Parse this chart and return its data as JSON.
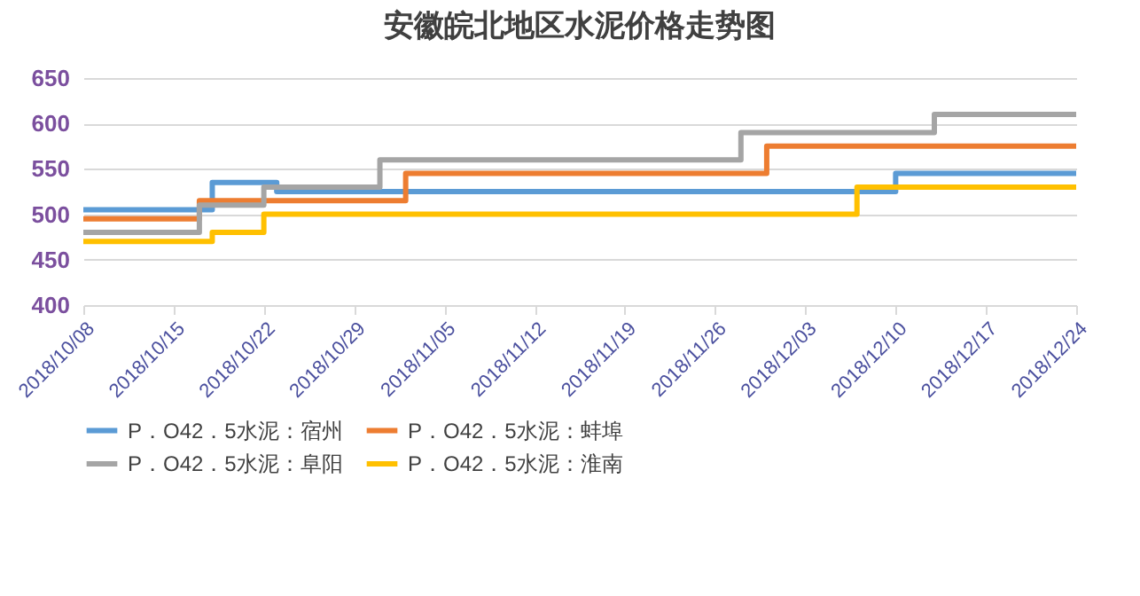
{
  "chart_data": {
    "type": "step",
    "title": "安徽皖北地区水泥价格走势图",
    "series": [
      {
        "name": "P．O42．5水泥：宿州",
        "color": "#5b9bd5",
        "x": [
          "2018-10-08",
          "2018-10-18",
          "2018-10-23",
          "2018-12-10",
          "2018-12-24"
        ],
        "values": [
          505,
          535,
          525,
          545,
          545
        ]
      },
      {
        "name": "P．O42．5水泥：蚌埠",
        "color": "#ed7d31",
        "x": [
          "2018-10-08",
          "2018-10-17",
          "2018-11-02",
          "2018-11-30",
          "2018-12-24"
        ],
        "values": [
          495,
          515,
          545,
          575,
          575
        ]
      },
      {
        "name": "P．O42．5水泥：阜阳",
        "color": "#a5a5a5",
        "x": [
          "2018-10-08",
          "2018-10-17",
          "2018-10-22",
          "2018-10-31",
          "2018-11-28",
          "2018-12-13",
          "2018-12-24"
        ],
        "values": [
          480,
          510,
          530,
          560,
          590,
          610,
          610
        ]
      },
      {
        "name": "P．O42．5水泥：淮南",
        "color": "#ffc000",
        "x": [
          "2018-10-08",
          "2018-10-18",
          "2018-10-22",
          "2018-12-07",
          "2018-12-24"
        ],
        "values": [
          470,
          480,
          500,
          530,
          530
        ]
      }
    ],
    "xlim": [
      "2018-10-08",
      "2018-12-24"
    ],
    "xticks": [
      {
        "value": "2018-10-08",
        "label": "2018/10/08"
      },
      {
        "value": "2018-10-15",
        "label": "2018/10/15"
      },
      {
        "value": "2018-10-22",
        "label": "2018/10/22"
      },
      {
        "value": "2018-10-29",
        "label": "2018/10/29"
      },
      {
        "value": "2018-11-05",
        "label": "2018/11/05"
      },
      {
        "value": "2018-11-12",
        "label": "2018/11/12"
      },
      {
        "value": "2018-11-19",
        "label": "2018/11/19"
      },
      {
        "value": "2018-11-26",
        "label": "2018/11/26"
      },
      {
        "value": "2018-12-03",
        "label": "2018/12/03"
      },
      {
        "value": "2018-12-10",
        "label": "2018/12/10"
      },
      {
        "value": "2018-12-17",
        "label": "2018/12/17"
      },
      {
        "value": "2018-12-24",
        "label": "2018/12/24"
      }
    ],
    "ylim": [
      400,
      650
    ],
    "yticks": [
      400,
      450,
      500,
      550,
      600,
      650
    ],
    "grid": "y",
    "legend": "bottom",
    "line_style": "solid"
  }
}
